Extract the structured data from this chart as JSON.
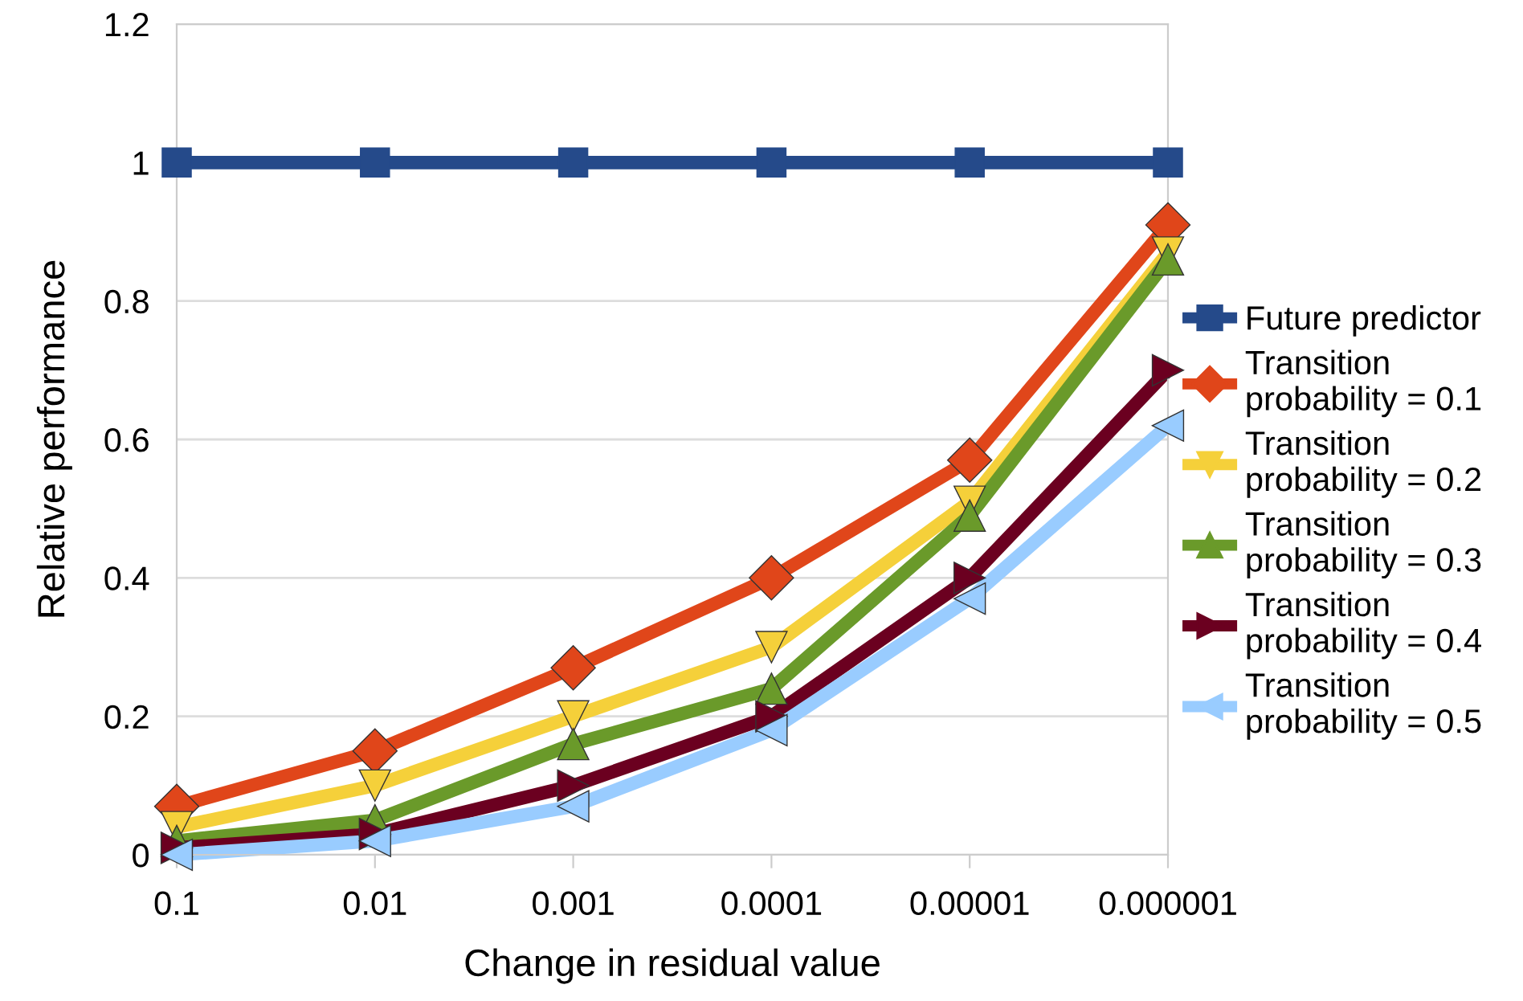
{
  "chart_data": {
    "type": "line",
    "xlabel": "Change in residual value",
    "ylabel": "Relative performance",
    "categories": [
      "0.1",
      "0.01",
      "0.001",
      "0.0001",
      "0.00001",
      "0.000001"
    ],
    "series": [
      {
        "name": "Future predictor",
        "color": "#254a8a",
        "marker": "square",
        "values": [
          1,
          1,
          1,
          1,
          1,
          1
        ]
      },
      {
        "name": "Transition probability = 0.1",
        "color": "#e0461a",
        "marker": "diamond",
        "values": [
          0.07,
          0.15,
          0.27,
          0.4,
          0.57,
          0.91
        ]
      },
      {
        "name": "Transition probability = 0.2",
        "color": "#f5d03a",
        "marker": "triangle_down",
        "values": [
          0.04,
          0.1,
          0.2,
          0.3,
          0.51,
          0.87
        ]
      },
      {
        "name": "Transition probability = 0.3",
        "color": "#6a9a2a",
        "marker": "triangle",
        "values": [
          0.02,
          0.05,
          0.16,
          0.24,
          0.49,
          0.86
        ]
      },
      {
        "name": "Transition probability = 0.4",
        "color": "#6b0020",
        "marker": "triangle_right",
        "values": [
          0.01,
          0.03,
          0.1,
          0.2,
          0.4,
          0.7
        ]
      },
      {
        "name": "Transition probability = 0.5",
        "color": "#99ccff",
        "marker": "triangle_left",
        "values": [
          0.0,
          0.02,
          0.07,
          0.18,
          0.37,
          0.62
        ]
      }
    ],
    "ylim": [
      0,
      1.2
    ],
    "yticks": [
      0,
      0.2,
      0.4,
      0.6,
      0.8,
      1,
      1.2
    ],
    "grid": "y",
    "legend": "right",
    "line_style": "solid"
  }
}
